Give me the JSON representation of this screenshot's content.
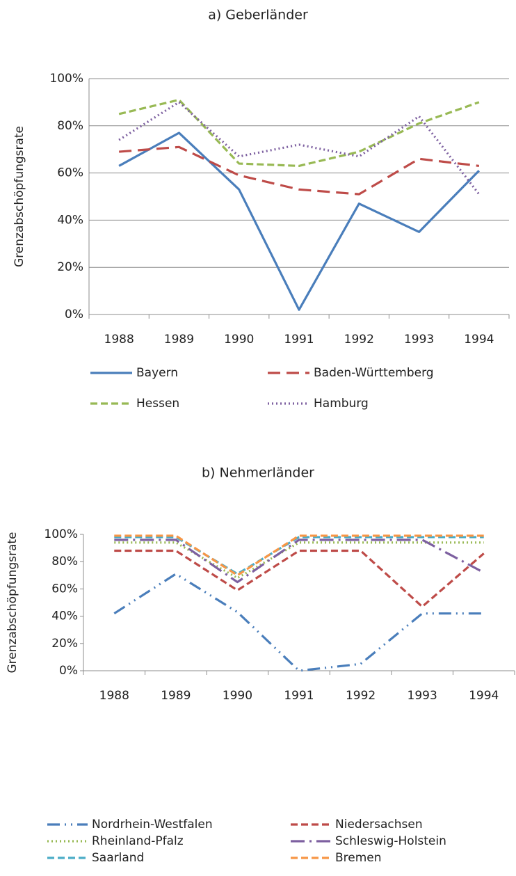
{
  "chart_data": [
    {
      "type": "line",
      "title": "a) Geberländer",
      "y_label": "Grenzabschöpfungsrate",
      "categories": [
        "1988",
        "1989",
        "1990",
        "1991",
        "1992",
        "1993",
        "1994"
      ],
      "ylim": [
        0,
        100
      ],
      "yticks": [
        {
          "value": 0,
          "label": "0%"
        },
        {
          "value": 20,
          "label": "20%"
        },
        {
          "value": 40,
          "label": "40%"
        },
        {
          "value": 60,
          "label": "60%"
        },
        {
          "value": 80,
          "label": "80%"
        },
        {
          "value": 100,
          "label": "100%"
        }
      ],
      "grid": true,
      "series": [
        {
          "name": "Bayern",
          "color": "#4a7ebb",
          "style": "solid",
          "values": [
            63,
            77,
            53,
            2,
            47,
            35,
            61
          ]
        },
        {
          "name": "Baden-Württemberg",
          "color": "#be4b48",
          "style": "long-dash",
          "values": [
            69,
            71,
            59,
            53,
            51,
            66,
            63
          ]
        },
        {
          "name": "Hessen",
          "color": "#98b954",
          "style": "dash",
          "values": [
            85,
            91,
            64,
            63,
            69,
            81,
            90
          ]
        },
        {
          "name": "Hamburg",
          "color": "#7d60a0",
          "style": "dot",
          "values": [
            74,
            90,
            67,
            72,
            67,
            84,
            51
          ]
        }
      ]
    },
    {
      "type": "line",
      "title": "b) Nehmerländer",
      "y_label": "Grenzabschöpfungsrate",
      "categories": [
        "1988",
        "1989",
        "1990",
        "1991",
        "1992",
        "1993",
        "1994"
      ],
      "ylim": [
        0,
        100
      ],
      "yticks": [
        {
          "value": 0,
          "label": "0%"
        },
        {
          "value": 20,
          "label": "20%"
        },
        {
          "value": 40,
          "label": "40%"
        },
        {
          "value": 60,
          "label": "60%"
        },
        {
          "value": 80,
          "label": "80%"
        },
        {
          "value": 100,
          "label": "100%"
        }
      ],
      "grid": false,
      "series": [
        {
          "name": "Nordrhein-Westfalen",
          "color": "#4a7ebb",
          "style": "dash-dot-dot",
          "values": [
            42,
            71,
            43,
            0,
            5,
            42,
            42
          ]
        },
        {
          "name": "Niedersachsen",
          "color": "#be4b48",
          "style": "dash",
          "values": [
            88,
            88,
            59,
            88,
            88,
            47,
            86
          ]
        },
        {
          "name": "Rheinland-Pfalz",
          "color": "#98b954",
          "style": "dot",
          "values": [
            94,
            94,
            68,
            94,
            94,
            94,
            94
          ]
        },
        {
          "name": "Schleswig-Holstein",
          "color": "#7d60a0",
          "style": "long-dash-dot",
          "values": [
            96,
            96,
            65,
            96,
            96,
            96,
            72
          ]
        },
        {
          "name": "Saarland",
          "color": "#4bacc6",
          "style": "dash",
          "values": [
            98,
            98,
            71,
            98,
            98,
            98,
            98
          ]
        },
        {
          "name": "Bremen",
          "color": "#f79646",
          "style": "dash",
          "values": [
            99,
            99,
            70,
            99,
            99,
            99,
            99
          ]
        }
      ]
    }
  ]
}
